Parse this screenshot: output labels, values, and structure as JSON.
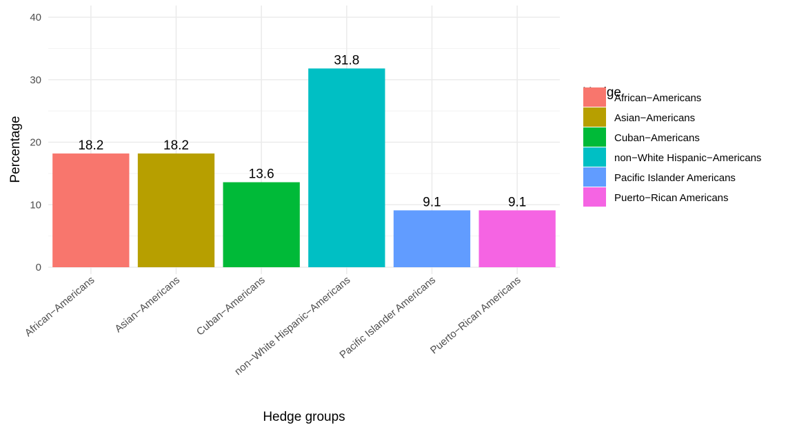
{
  "chart_data": {
    "type": "bar",
    "xlabel": "Hedge groups",
    "ylabel": "Percentage",
    "categories": [
      "African−Americans",
      "Asian−Americans",
      "Cuban−Americans",
      "non−White Hispanic−Americans",
      "Pacific Islander Americans",
      "Puerto−Rican Americans"
    ],
    "values": [
      18.2,
      18.2,
      13.6,
      31.8,
      9.1,
      9.1
    ],
    "data_labels": [
      "18.2",
      "18.2",
      "13.6",
      "31.8",
      "9.1",
      "9.1"
    ],
    "colors": [
      "#F8766D",
      "#B79F00",
      "#00BA38",
      "#00BFC4",
      "#619CFF",
      "#F564E3"
    ],
    "ylim": [
      0,
      40
    ],
    "yticks": [
      0,
      10,
      20,
      30,
      40
    ],
    "grid": true,
    "legend": {
      "title": "Hedge",
      "placement": "right",
      "entries": [
        "African−Americans",
        "Asian−Americans",
        "Cuban−Americans",
        "non−White Hispanic−Americans",
        "Pacific Islander Americans",
        "Puerto−Rican Americans"
      ]
    }
  }
}
